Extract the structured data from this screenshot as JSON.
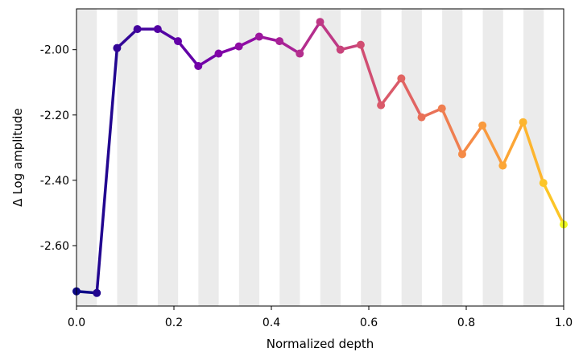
{
  "chart_data": {
    "type": "line",
    "title": "",
    "xlabel": "Normalized depth",
    "ylabel": "Δ Log amplitude",
    "xlim": [
      0.0,
      1.0
    ],
    "ylim": [
      -2.785,
      -1.875
    ],
    "x_ticks": [
      "0.0",
      "0.2",
      "0.4",
      "0.6",
      "0.8",
      "1.0"
    ],
    "x_tick_values": [
      0.0,
      0.2,
      0.4,
      0.6,
      0.8,
      1.0
    ],
    "y_ticks": [
      "-2.00",
      "-2.20",
      "-2.40",
      "-2.60"
    ],
    "y_tick_values": [
      -2.0,
      -2.2,
      -2.4,
      -2.6
    ],
    "grid": false,
    "background_bands": {
      "color": "#ebebeb",
      "pattern": "alternating vertical bands, shaded intervals starting at x = 0",
      "band_width": 0.0417
    },
    "colormap": "plasma",
    "x": [
      0.0,
      0.0417,
      0.0833,
      0.125,
      0.1667,
      0.2083,
      0.25,
      0.2917,
      0.3333,
      0.375,
      0.4167,
      0.4583,
      0.5,
      0.5417,
      0.5833,
      0.625,
      0.6667,
      0.7083,
      0.75,
      0.7917,
      0.8333,
      0.875,
      0.9167,
      0.9583,
      1.0
    ],
    "y": [
      -2.74,
      -2.745,
      -1.995,
      -1.937,
      -1.937,
      -1.974,
      -2.05,
      -2.012,
      -1.99,
      -1.96,
      -1.974,
      -2.012,
      -1.915,
      -2.0,
      -1.985,
      -2.17,
      -2.088,
      -2.207,
      -2.18,
      -2.32,
      -2.232,
      -2.355,
      -2.222,
      -2.408,
      -2.535
    ],
    "colors": [
      "#0d0887",
      "#220690",
      "#330597",
      "#43039e",
      "#5302a3",
      "#6300a7",
      "#7201a8",
      "#8105a7",
      "#8f0da4",
      "#9c179e",
      "#a82296",
      "#b42e8d",
      "#be3885",
      "#c8437b",
      "#d14e72",
      "#da5a6a",
      "#e16462",
      "#e97158",
      "#ef7e50",
      "#f58b47",
      "#f99a3e",
      "#fca636",
      "#fdb52e",
      "#fcc527",
      "#f0f921"
    ]
  }
}
